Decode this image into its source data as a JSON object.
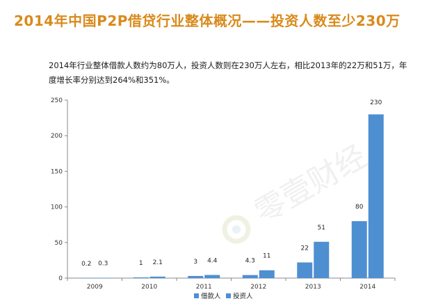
{
  "header": {
    "title": "2014年中国P2P借贷行业整体概况——投资人数至少230万",
    "subtitle": "2014年行业整体借款人数约为80万人，投资人数则在230万人左右，相比2013年的22万和51万，年度增长率分别达到264%和351%。"
  },
  "watermark": {
    "text": "零壹财经",
    "logo": "lingyi-logo-icon"
  },
  "chart_data": {
    "type": "bar",
    "categories": [
      "2009",
      "2010",
      "2011",
      "2012",
      "2013",
      "2014"
    ],
    "series": [
      {
        "name": "借款人",
        "values": [
          0.2,
          1,
          3,
          4.3,
          22,
          80
        ],
        "labels": [
          "0.2",
          "1",
          "3",
          "4.3",
          "22",
          "80"
        ],
        "color": "#4e8fd1"
      },
      {
        "name": "投资人",
        "values": [
          0.3,
          2.1,
          4.4,
          11,
          51,
          230
        ],
        "labels": [
          "0.3",
          "2.1",
          "4.4",
          "11",
          "51",
          "230"
        ],
        "color": "#4e8fd1"
      }
    ],
    "ylim": [
      0,
      250
    ],
    "yticks": [
      "0",
      "50",
      "100",
      "150",
      "200",
      "250"
    ],
    "grid": false,
    "legend": "bottom"
  }
}
